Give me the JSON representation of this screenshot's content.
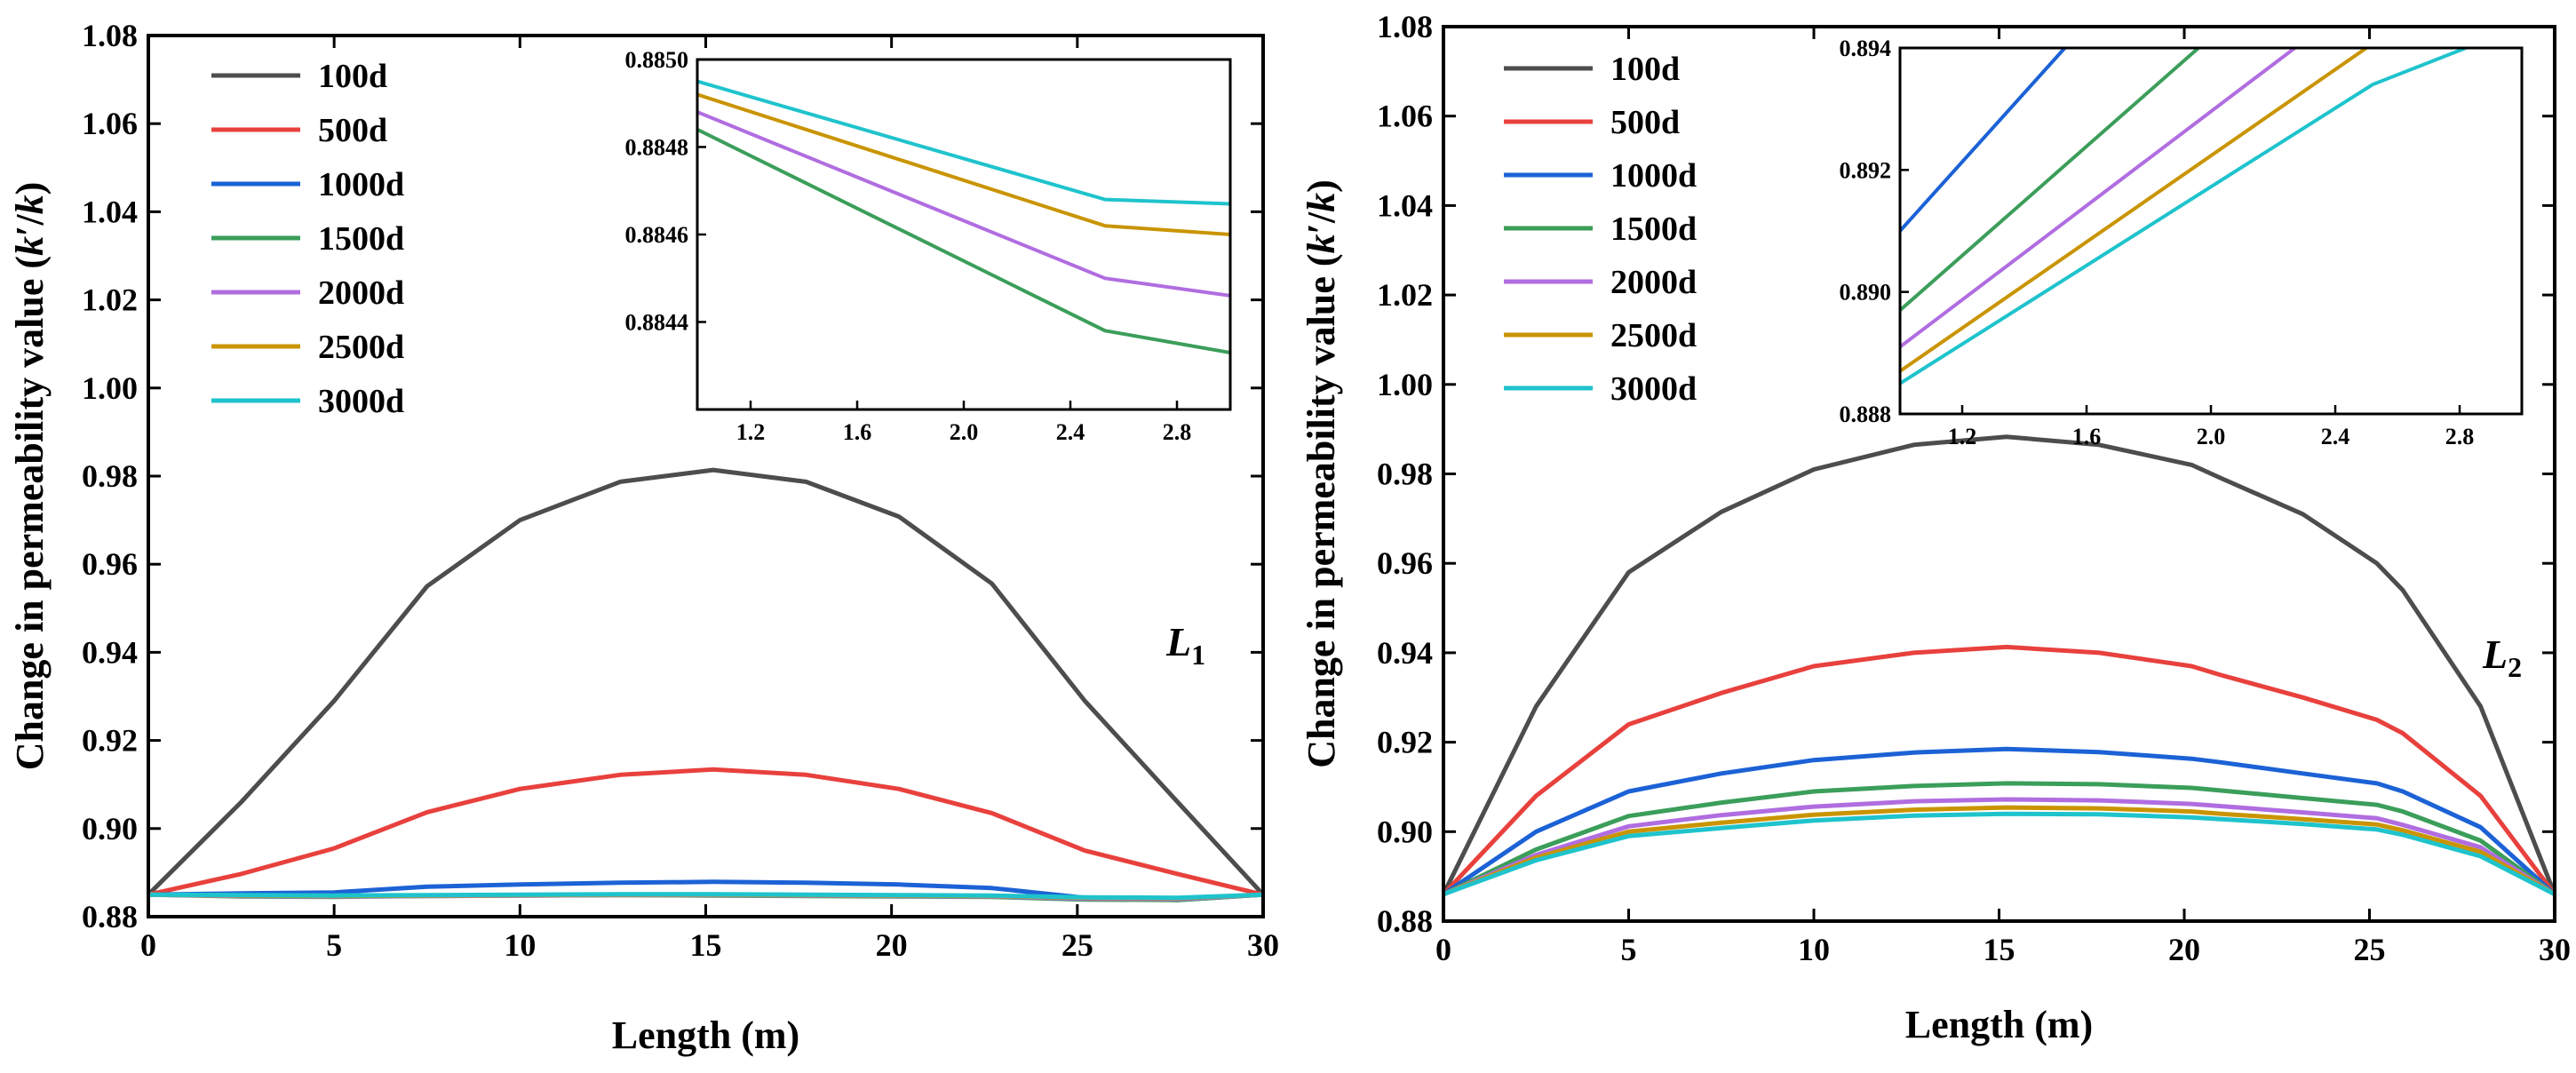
{
  "chart_data": [
    {
      "type": "line",
      "panel": "left",
      "annotation": "L",
      "annotation_sub": "1",
      "xlabel": "Length (m)",
      "ylabel": "Change in permeability value (k′/k)",
      "ylabel_parts": [
        "Change in permeability value (",
        "k",
        "′/",
        "k",
        ")"
      ],
      "xlim": [
        0,
        30
      ],
      "ylim": [
        0.88,
        1.08
      ],
      "xticks": [
        0,
        5,
        10,
        15,
        20,
        25,
        30
      ],
      "xtick_labels": [
        "0",
        "5",
        "10",
        "15",
        "20",
        "25",
        "30"
      ],
      "yticks": [
        0.88,
        0.9,
        0.92,
        0.94,
        0.96,
        0.98,
        1.0,
        1.02,
        1.04,
        1.06,
        1.08
      ],
      "ytick_labels": [
        "0.88",
        "0.90",
        "0.92",
        "0.94",
        "0.96",
        "0.98",
        "1.00",
        "1.02",
        "1.04",
        "1.06",
        "1.08"
      ],
      "legend_position": "top-left",
      "series": [
        {
          "name": "100d",
          "color": "#4d4d4d",
          "x": [
            0,
            2.5,
            5,
            7.5,
            10,
            12.7,
            15.2,
            17.7,
            20.2,
            22.7,
            25.2,
            27.7,
            30
          ],
          "values": [
            0.885,
            0.906,
            0.929,
            0.955,
            0.97,
            0.9787,
            0.9814,
            0.9787,
            0.9708,
            0.9556,
            0.929,
            0.906,
            0.885
          ]
        },
        {
          "name": "500d",
          "color": "#e8413d",
          "x": [
            0,
            2.5,
            5,
            7.5,
            10,
            12.7,
            15.2,
            17.7,
            20.2,
            22.7,
            25.2,
            27.7,
            30
          ],
          "values": [
            0.885,
            0.8897,
            0.8955,
            0.9037,
            0.909,
            0.9122,
            0.9134,
            0.9122,
            0.909,
            0.9035,
            0.895,
            0.8897,
            0.885
          ]
        },
        {
          "name": "1000d",
          "color": "#1c62d6",
          "x": [
            0,
            2.5,
            5,
            7.5,
            10,
            12.7,
            15.2,
            17.7,
            20.2,
            22.7,
            25.2,
            27.7,
            30
          ],
          "values": [
            0.885,
            0.8853,
            0.8855,
            0.8868,
            0.8873,
            0.8877,
            0.8879,
            0.8877,
            0.8873,
            0.8865,
            0.8843,
            0.8838,
            0.885
          ]
        },
        {
          "name": "1500d",
          "color": "#3b9e5a",
          "x": [
            0,
            2.5,
            5,
            7.5,
            10,
            12.7,
            15.2,
            17.7,
            20.2,
            22.7,
            25.2,
            27.7,
            30
          ],
          "values": [
            0.885,
            0.8846,
            0.8845,
            0.8847,
            0.8848,
            0.8849,
            0.8848,
            0.8847,
            0.8846,
            0.8845,
            0.8839,
            0.8838,
            0.885
          ]
        },
        {
          "name": "2000d",
          "color": "#b06de0",
          "x": [
            0,
            2.5,
            5,
            7.5,
            10,
            12.7,
            15.2,
            17.7,
            20.2,
            22.7,
            25.2,
            27.7,
            30
          ],
          "values": [
            0.885,
            0.8847,
            0.8846,
            0.8847,
            0.8848,
            0.8849,
            0.8849,
            0.8848,
            0.8847,
            0.8846,
            0.8841,
            0.884,
            0.885
          ]
        },
        {
          "name": "2500d",
          "color": "#c99400",
          "x": [
            0,
            2.5,
            5,
            7.5,
            10,
            12.7,
            15.2,
            17.7,
            20.2,
            22.7,
            25.2,
            27.7,
            30
          ],
          "values": [
            0.885,
            0.8848,
            0.8847,
            0.8848,
            0.8849,
            0.885,
            0.885,
            0.8849,
            0.8848,
            0.8847,
            0.8843,
            0.8842,
            0.885
          ]
        },
        {
          "name": "3000d",
          "color": "#1fc3cc",
          "x": [
            0,
            2.5,
            5,
            7.5,
            10,
            12.7,
            15.2,
            17.7,
            20.2,
            22.7,
            25.2,
            27.7,
            30
          ],
          "values": [
            0.885,
            0.8849,
            0.8848,
            0.8849,
            0.885,
            0.8851,
            0.8851,
            0.885,
            0.8849,
            0.8848,
            0.8844,
            0.8843,
            0.885
          ]
        }
      ],
      "inset": {
        "xlim": [
          1.0,
          3.0
        ],
        "ylim": [
          0.8842,
          0.885
        ],
        "xticks": [
          1.2,
          1.6,
          2.0,
          2.4,
          2.8
        ],
        "xtick_labels": [
          "1.2",
          "1.6",
          "2.0",
          "2.4",
          "2.8"
        ],
        "yticks": [
          0.8844,
          0.8846,
          0.8848,
          0.885
        ],
        "ytick_labels": [
          "0.8844",
          "0.8846",
          "0.8848",
          "0.8850"
        ],
        "series": [
          {
            "name": "1500d",
            "color": "#3b9e5a",
            "x": [
              1.0,
              2.53,
              3.0
            ],
            "values": [
              0.88484,
              0.88438,
              0.88433
            ]
          },
          {
            "name": "2000d",
            "color": "#b06de0",
            "x": [
              1.0,
              2.53,
              3.0
            ],
            "values": [
              0.88488,
              0.8845,
              0.88446
            ]
          },
          {
            "name": "2500d",
            "color": "#c99400",
            "x": [
              1.0,
              2.53,
              3.0
            ],
            "values": [
              0.88492,
              0.88462,
              0.8846
            ]
          },
          {
            "name": "3000d",
            "color": "#1fc3cc",
            "x": [
              1.0,
              2.53,
              3.0
            ],
            "values": [
              0.88495,
              0.88468,
              0.88467
            ]
          }
        ]
      }
    },
    {
      "type": "line",
      "panel": "right",
      "annotation": "L",
      "annotation_sub": "2",
      "xlabel": "Length (m)",
      "ylabel": "Change in permeability value (k′/k)",
      "ylabel_parts": [
        "Change in permeability value (",
        "k",
        "′/",
        "k",
        ")"
      ],
      "xlim": [
        0,
        30
      ],
      "ylim": [
        0.88,
        1.08
      ],
      "xticks": [
        0,
        5,
        10,
        15,
        20,
        25,
        30
      ],
      "xtick_labels": [
        "0",
        "5",
        "10",
        "15",
        "20",
        "25",
        "30"
      ],
      "yticks": [
        0.88,
        0.9,
        0.92,
        0.94,
        0.96,
        0.98,
        1.0,
        1.02,
        1.04,
        1.06,
        1.08
      ],
      "ytick_labels": [
        "0.88",
        "0.90",
        "0.92",
        "0.94",
        "0.96",
        "0.98",
        "1.00",
        "1.02",
        "1.04",
        "1.06",
        "1.08"
      ],
      "legend_position": "top-left",
      "series": [
        {
          "name": "100d",
          "color": "#4d4d4d",
          "x": [
            0,
            2.5,
            5,
            7.5,
            10,
            12.7,
            15.2,
            17.7,
            20.2,
            21,
            23.2,
            25.2,
            25.9,
            28,
            30
          ],
          "values": [
            0.886,
            0.928,
            0.958,
            0.9715,
            0.981,
            0.9865,
            0.9883,
            0.9865,
            0.982,
            0.979,
            0.971,
            0.96,
            0.954,
            0.928,
            0.886
          ]
        },
        {
          "name": "500d",
          "color": "#e8413d",
          "x": [
            0,
            2.5,
            5,
            7.5,
            10,
            12.7,
            15.2,
            17.7,
            20.2,
            21,
            23.2,
            25.2,
            25.9,
            28,
            30
          ],
          "values": [
            0.886,
            0.908,
            0.924,
            0.931,
            0.937,
            0.94,
            0.9413,
            0.94,
            0.937,
            0.935,
            0.93,
            0.925,
            0.922,
            0.908,
            0.886
          ]
        },
        {
          "name": "1000d",
          "color": "#1c62d6",
          "x": [
            0,
            2.5,
            5,
            7.5,
            10,
            12.7,
            15.2,
            17.7,
            20.2,
            21,
            23.2,
            25.2,
            25.9,
            28,
            30
          ],
          "values": [
            0.886,
            0.9,
            0.909,
            0.913,
            0.916,
            0.9177,
            0.9185,
            0.9178,
            0.9163,
            0.9155,
            0.913,
            0.9108,
            0.909,
            0.901,
            0.886
          ]
        },
        {
          "name": "1500d",
          "color": "#3b9e5a",
          "x": [
            0,
            2.5,
            5,
            7.5,
            10,
            12.7,
            15.2,
            17.7,
            20.2,
            21,
            23.2,
            25.2,
            25.9,
            28,
            30
          ],
          "values": [
            0.886,
            0.896,
            0.9035,
            0.9065,
            0.909,
            0.9102,
            0.9108,
            0.9106,
            0.9098,
            0.9092,
            0.9075,
            0.906,
            0.9045,
            0.898,
            0.886
          ]
        },
        {
          "name": "2000d",
          "color": "#b06de0",
          "x": [
            0,
            2.5,
            5,
            7.5,
            10,
            12.7,
            15.2,
            17.7,
            20.2,
            21,
            23.2,
            25.2,
            25.9,
            28,
            30
          ],
          "values": [
            0.886,
            0.8948,
            0.9012,
            0.9037,
            0.9056,
            0.9068,
            0.9072,
            0.907,
            0.9062,
            0.9057,
            0.9043,
            0.903,
            0.9015,
            0.8965,
            0.886
          ]
        },
        {
          "name": "2500d",
          "color": "#c99400",
          "x": [
            0,
            2.5,
            5,
            7.5,
            10,
            12.7,
            15.2,
            17.7,
            20.2,
            21,
            23.2,
            25.2,
            25.9,
            28,
            30
          ],
          "values": [
            0.886,
            0.8942,
            0.9,
            0.902,
            0.9038,
            0.9049,
            0.9054,
            0.9052,
            0.9045,
            0.904,
            0.9028,
            0.9016,
            0.9003,
            0.8955,
            0.886
          ]
        },
        {
          "name": "3000d",
          "color": "#1fc3cc",
          "x": [
            0,
            2.5,
            5,
            7.5,
            10,
            12.7,
            15.2,
            17.7,
            20.2,
            21,
            23.2,
            25.2,
            25.9,
            28,
            30
          ],
          "values": [
            0.886,
            0.8936,
            0.899,
            0.9008,
            0.9025,
            0.9036,
            0.904,
            0.9039,
            0.9032,
            0.9028,
            0.9017,
            0.9005,
            0.8993,
            0.8945,
            0.886
          ]
        }
      ],
      "inset": {
        "xlim": [
          1.0,
          3.0
        ],
        "ylim": [
          0.888,
          0.894
        ],
        "xticks": [
          1.2,
          1.6,
          2.0,
          2.4,
          2.8
        ],
        "xtick_labels": [
          "1.2",
          "1.6",
          "2.0",
          "2.4",
          "2.8"
        ],
        "yticks": [
          0.888,
          0.89,
          0.892,
          0.894
        ],
        "ytick_labels": [
          "0.888",
          "0.890",
          "0.892",
          "0.894"
        ],
        "series": [
          {
            "name": "1000d",
            "color": "#1c62d6",
            "x": [
              1.0,
              1.53
            ],
            "values": [
              0.891,
              0.894
            ]
          },
          {
            "name": "1500d",
            "color": "#3b9e5a",
            "x": [
              1.0,
              1.96
            ],
            "values": [
              0.8897,
              0.894
            ]
          },
          {
            "name": "2000d",
            "color": "#b06de0",
            "x": [
              1.0,
              2.27
            ],
            "values": [
              0.8891,
              0.894
            ]
          },
          {
            "name": "2500d",
            "color": "#c99400",
            "x": [
              1.0,
              2.5
            ],
            "values": [
              0.8887,
              0.894
            ]
          },
          {
            "name": "3000d",
            "color": "#1fc3cc",
            "x": [
              1.0,
              2.52,
              2.82
            ],
            "values": [
              0.8885,
              0.8934,
              0.894
            ]
          }
        ]
      }
    }
  ]
}
